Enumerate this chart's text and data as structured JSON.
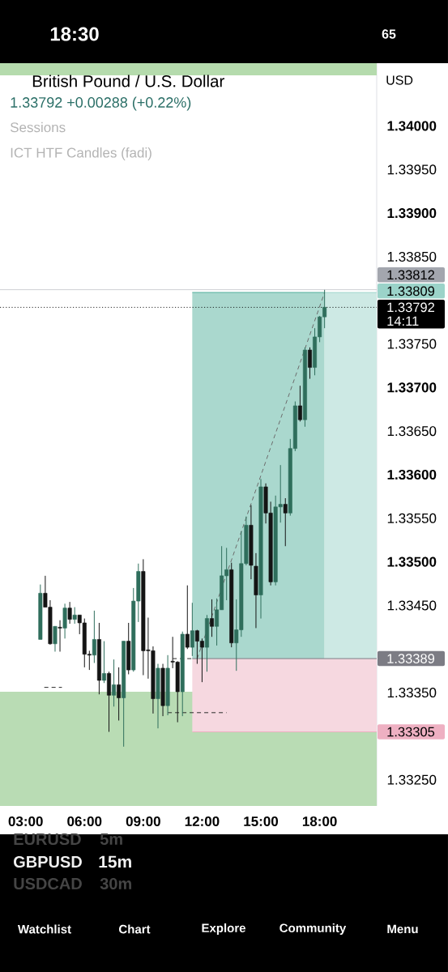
{
  "chart_data": {
    "type": "candlestick",
    "title": "British Pound / U.S. Dollar",
    "subtitle": "1.33792 +0.00288 (+0.22%)",
    "x": [
      3.75,
      4,
      4.25,
      4.5,
      4.75,
      5,
      5.25,
      5.5,
      5.75,
      6,
      6.25,
      6.5,
      6.75,
      7,
      7.25,
      7.5,
      7.75,
      8,
      8.25,
      8.5,
      8.75,
      9,
      9.25,
      9.5,
      9.75,
      10,
      10.25,
      10.5,
      10.75,
      11,
      11.25,
      11.5,
      11.75,
      12,
      12.25,
      12.5,
      12.75,
      13,
      13.25,
      13.5,
      13.75,
      14,
      14.25,
      14.5,
      14.75,
      15,
      15.25,
      15.5,
      15.75,
      16,
      16.25,
      16.5,
      16.75,
      17,
      17.25,
      17.5,
      17.75,
      18,
      18.25
    ],
    "ohlc": [
      [
        1.33411,
        1.33474,
        1.33411,
        1.33464
      ],
      [
        1.33464,
        1.33484,
        1.33448,
        1.33448
      ],
      [
        1.33448,
        1.33456,
        1.33405,
        1.33406
      ],
      [
        1.33406,
        1.33426,
        1.33397,
        1.33426
      ],
      [
        1.33425,
        1.33433,
        1.33397,
        1.33424
      ],
      [
        1.33424,
        1.33452,
        1.33412,
        1.33447
      ],
      [
        1.33447,
        1.33454,
        1.33429,
        1.33434
      ],
      [
        1.33434,
        1.33448,
        1.33429,
        1.33439
      ],
      [
        1.33439,
        1.33439,
        1.33417,
        1.3343
      ],
      [
        1.3343,
        1.33435,
        1.33379,
        1.33394
      ],
      [
        1.33394,
        1.33398,
        1.33376,
        1.33393
      ],
      [
        1.33393,
        1.33444,
        1.33384,
        1.33411
      ],
      [
        1.33411,
        1.3343,
        1.33348,
        1.33364
      ],
      [
        1.33364,
        1.33409,
        1.33361,
        1.33372
      ],
      [
        1.33372,
        1.33374,
        1.33305,
        1.33347
      ],
      [
        1.33347,
        1.33388,
        1.33334,
        1.33359
      ],
      [
        1.33359,
        1.33379,
        1.33318,
        1.33344
      ],
      [
        1.33344,
        1.33409,
        1.33288,
        1.33409
      ],
      [
        1.33409,
        1.3343,
        1.33371,
        1.33376
      ],
      [
        1.33376,
        1.3347,
        1.33374,
        1.33455
      ],
      [
        1.33455,
        1.33498,
        1.33431,
        1.33489
      ],
      [
        1.33489,
        1.33503,
        1.3337,
        1.33398
      ],
      [
        1.33399,
        1.33436,
        1.33366,
        1.33398
      ],
      [
        1.33398,
        1.33403,
        1.33326,
        1.33343
      ],
      [
        1.33343,
        1.33383,
        1.33309,
        1.33378
      ],
      [
        1.33378,
        1.33383,
        1.33323,
        1.33335
      ],
      [
        1.33335,
        1.33393,
        1.33324,
        1.33378
      ],
      [
        1.33386,
        1.33414,
        1.33378,
        1.33385
      ],
      [
        1.33385,
        1.33386,
        1.33316,
        1.33351
      ],
      [
        1.33351,
        1.3342,
        1.33323,
        1.33417
      ],
      [
        1.33417,
        1.33473,
        1.334,
        1.33402
      ],
      [
        1.33402,
        1.33453,
        1.33392,
        1.33421
      ],
      [
        1.33421,
        1.33422,
        1.33383,
        1.33409
      ],
      [
        1.33409,
        1.33412,
        1.33362,
        1.33402
      ],
      [
        1.33402,
        1.33439,
        1.33374,
        1.33435
      ],
      [
        1.33435,
        1.33457,
        1.33414,
        1.33426
      ],
      [
        1.33426,
        1.33458,
        1.33404,
        1.33445
      ],
      [
        1.33445,
        1.33518,
        1.33445,
        1.33484
      ],
      [
        1.33484,
        1.33516,
        1.33456,
        1.33491
      ],
      [
        1.33491,
        1.33499,
        1.33402,
        1.33407
      ],
      [
        1.33407,
        1.33457,
        1.33375,
        1.33422
      ],
      [
        1.33422,
        1.33535,
        1.33414,
        1.33498
      ],
      [
        1.33498,
        1.33552,
        1.33496,
        1.33542
      ],
      [
        1.33542,
        1.33565,
        1.3348,
        1.33496
      ],
      [
        1.33495,
        1.3351,
        1.33424,
        1.33462
      ],
      [
        1.33462,
        1.33595,
        1.33435,
        1.33586
      ],
      [
        1.33586,
        1.3359,
        1.33544,
        1.33556
      ],
      [
        1.33556,
        1.33569,
        1.33473,
        1.33477
      ],
      [
        1.33477,
        1.33576,
        1.33473,
        1.33563
      ],
      [
        1.33563,
        1.33611,
        1.33545,
        1.33566
      ],
      [
        1.33566,
        1.33573,
        1.33518,
        1.33556
      ],
      [
        1.33556,
        1.33641,
        1.33553,
        1.3363
      ],
      [
        1.3363,
        1.33684,
        1.33627,
        1.33679
      ],
      [
        1.33679,
        1.33702,
        1.33661,
        1.33663
      ],
      [
        1.33663,
        1.33746,
        1.33655,
        1.33743
      ],
      [
        1.33743,
        1.33746,
        1.3371,
        1.33723
      ],
      [
        1.33723,
        1.33768,
        1.33714,
        1.33758
      ],
      [
        1.33758,
        1.33782,
        1.33752,
        1.33781
      ],
      [
        1.33781,
        1.33812,
        1.33768,
        1.33792
      ]
    ],
    "colors": [
      "#2f6e5c",
      "#141414",
      "#141414",
      "#2f6e5c",
      "#141414",
      "#2f6e5c",
      "#141414",
      "#2f6e5c",
      "#141414",
      "#141414",
      "#141414",
      "#2f6e5c",
      "#141414",
      "#2f6e5c",
      "#141414",
      "#2f6e5c",
      "#141414",
      "#2f6e5c",
      "#141414",
      "#2f6e5c",
      "#2f6e5c",
      "#141414",
      "#141414",
      "#141414",
      "#2f6e5c",
      "#141414",
      "#2f6e5c",
      "#141414",
      "#141414",
      "#2f6e5c",
      "#141414",
      "#2f6e5c",
      "#141414",
      "#141414",
      "#2f6e5c",
      "#141414",
      "#2f6e5c",
      "#2f6e5c",
      "#2f6e5c",
      "#141414",
      "#2f6e5c",
      "#2f6e5c",
      "#2f6e5c",
      "#141414",
      "#141414",
      "#2f6e5c",
      "#141414",
      "#141414",
      "#2f6e5c",
      "#2f6e5c",
      "#141414",
      "#2f6e5c",
      "#2f6e5c",
      "#141414",
      "#2f6e5c",
      "#141414",
      "#2f6e5c",
      "#2f6e5c",
      "#2f6e5c"
    ],
    "xlim": [
      1.69,
      20.91
    ],
    "ylim": [
      1.3322,
      1.34072
    ],
    "xticks": [
      {
        "value": 3,
        "label": "03:00"
      },
      {
        "value": 6,
        "label": "06:00"
      },
      {
        "value": 9,
        "label": "09:00"
      },
      {
        "value": 12,
        "label": "12:00"
      },
      {
        "value": 15,
        "label": "15:00"
      },
      {
        "value": 18,
        "label": "18:00"
      }
    ],
    "yticks": [
      {
        "value": 1.3325,
        "label": "1.33250"
      },
      {
        "value": 1.3335,
        "label": "1.33350"
      },
      {
        "value": 1.3345,
        "label": "1.33450"
      },
      {
        "value": 1.335,
        "label": "1.33500"
      },
      {
        "value": 1.3355,
        "label": "1.33550"
      },
      {
        "value": 1.336,
        "label": "1.33600"
      },
      {
        "value": 1.3365,
        "label": "1.33650"
      },
      {
        "value": 1.337,
        "label": "1.33700"
      },
      {
        "value": 1.3375,
        "label": "1.33750"
      },
      {
        "value": 1.3385,
        "label": "1.33850"
      },
      {
        "value": 1.339,
        "label": "1.33900"
      },
      {
        "value": 1.3395,
        "label": "1.33950"
      },
      {
        "value": 1.34,
        "label": "1.34000"
      }
    ],
    "series": [
      {
        "type": "line",
        "x": [
          11.5,
          18.25
        ],
        "values": [
          1.33809,
          1.33809
        ],
        "lower": [
          1.33389,
          1.33389
        ],
        "upper": [
          1.33809,
          1.33809
        ],
        "color": "#55b09c"
      },
      {
        "type": "line",
        "x": [
          18.25,
          20.91
        ],
        "values": [
          1.33809,
          1.33809
        ],
        "lower": [
          1.33389,
          1.33389
        ],
        "upper": [
          1.33809,
          1.33809
        ],
        "color": "#9bd3c9",
        "value_labels": [
          null,
          "1.33809"
        ]
      },
      {
        "type": "line",
        "x": [
          11.5,
          20.91
        ],
        "values": [
          1.33305,
          1.33305
        ],
        "lower": [
          1.33305,
          1.33305
        ],
        "upper": [
          1.33389,
          1.33389
        ],
        "color": "#eeb0c2",
        "value_labels": [
          null,
          "1.33305"
        ]
      },
      {
        "type": "line",
        "x": [
          11.5,
          20.91
        ],
        "values": [
          1.33389,
          1.33389
        ],
        "color": "#7c7c84",
        "value_labels": [
          null,
          "1.33389"
        ]
      },
      {
        "type": "line",
        "x": [
          11.75,
          18.25
        ],
        "values": [
          1.33389,
          1.33809
        ],
        "color": "#6b6b6b",
        "line_style": "dashed"
      },
      {
        "type": "line",
        "x": [
          3.95,
          4.85
        ],
        "values": [
          1.33356,
          1.33356
        ],
        "color": "#2a2a2a",
        "line_style": "dashed"
      },
      {
        "type": "line",
        "x": [
          10.25,
          13.25
        ],
        "values": [
          1.33327,
          1.33327
        ],
        "color": "#2a2a2a",
        "line_style": "dashed"
      },
      {
        "type": "line",
        "x": [
          10.5,
          11.5
        ],
        "values": [
          1.33389,
          1.33389
        ],
        "color": "#2a2a2a",
        "line_style": "dashed"
      }
    ],
    "bands": [
      {
        "axis": "y",
        "from": 1.3322,
        "to": 1.33351,
        "color": "#b9dcb4"
      },
      {
        "axis": "y",
        "from": 1.34058,
        "to": 1.34072,
        "color": "#b5dbad"
      }
    ],
    "ref_lines": [
      {
        "axis": "y",
        "value": 1.33812,
        "label": "1.33812",
        "color": "#a3a6ae"
      },
      {
        "axis": "y",
        "value": 1.33792,
        "label": "1.33792",
        "color": "#000000",
        "line_style": "dotted"
      }
    ],
    "annotations": [
      "Sessions",
      "ICT HTF Candles (fadi)",
      "USD",
      "18:30",
      "65",
      "EURUSD",
      "5m",
      "GBPUSD",
      "15m",
      "USDCAD",
      "30m",
      "Watchlist",
      "Chart",
      "Explore",
      "Community",
      "Menu",
      "14:11"
    ]
  }
}
